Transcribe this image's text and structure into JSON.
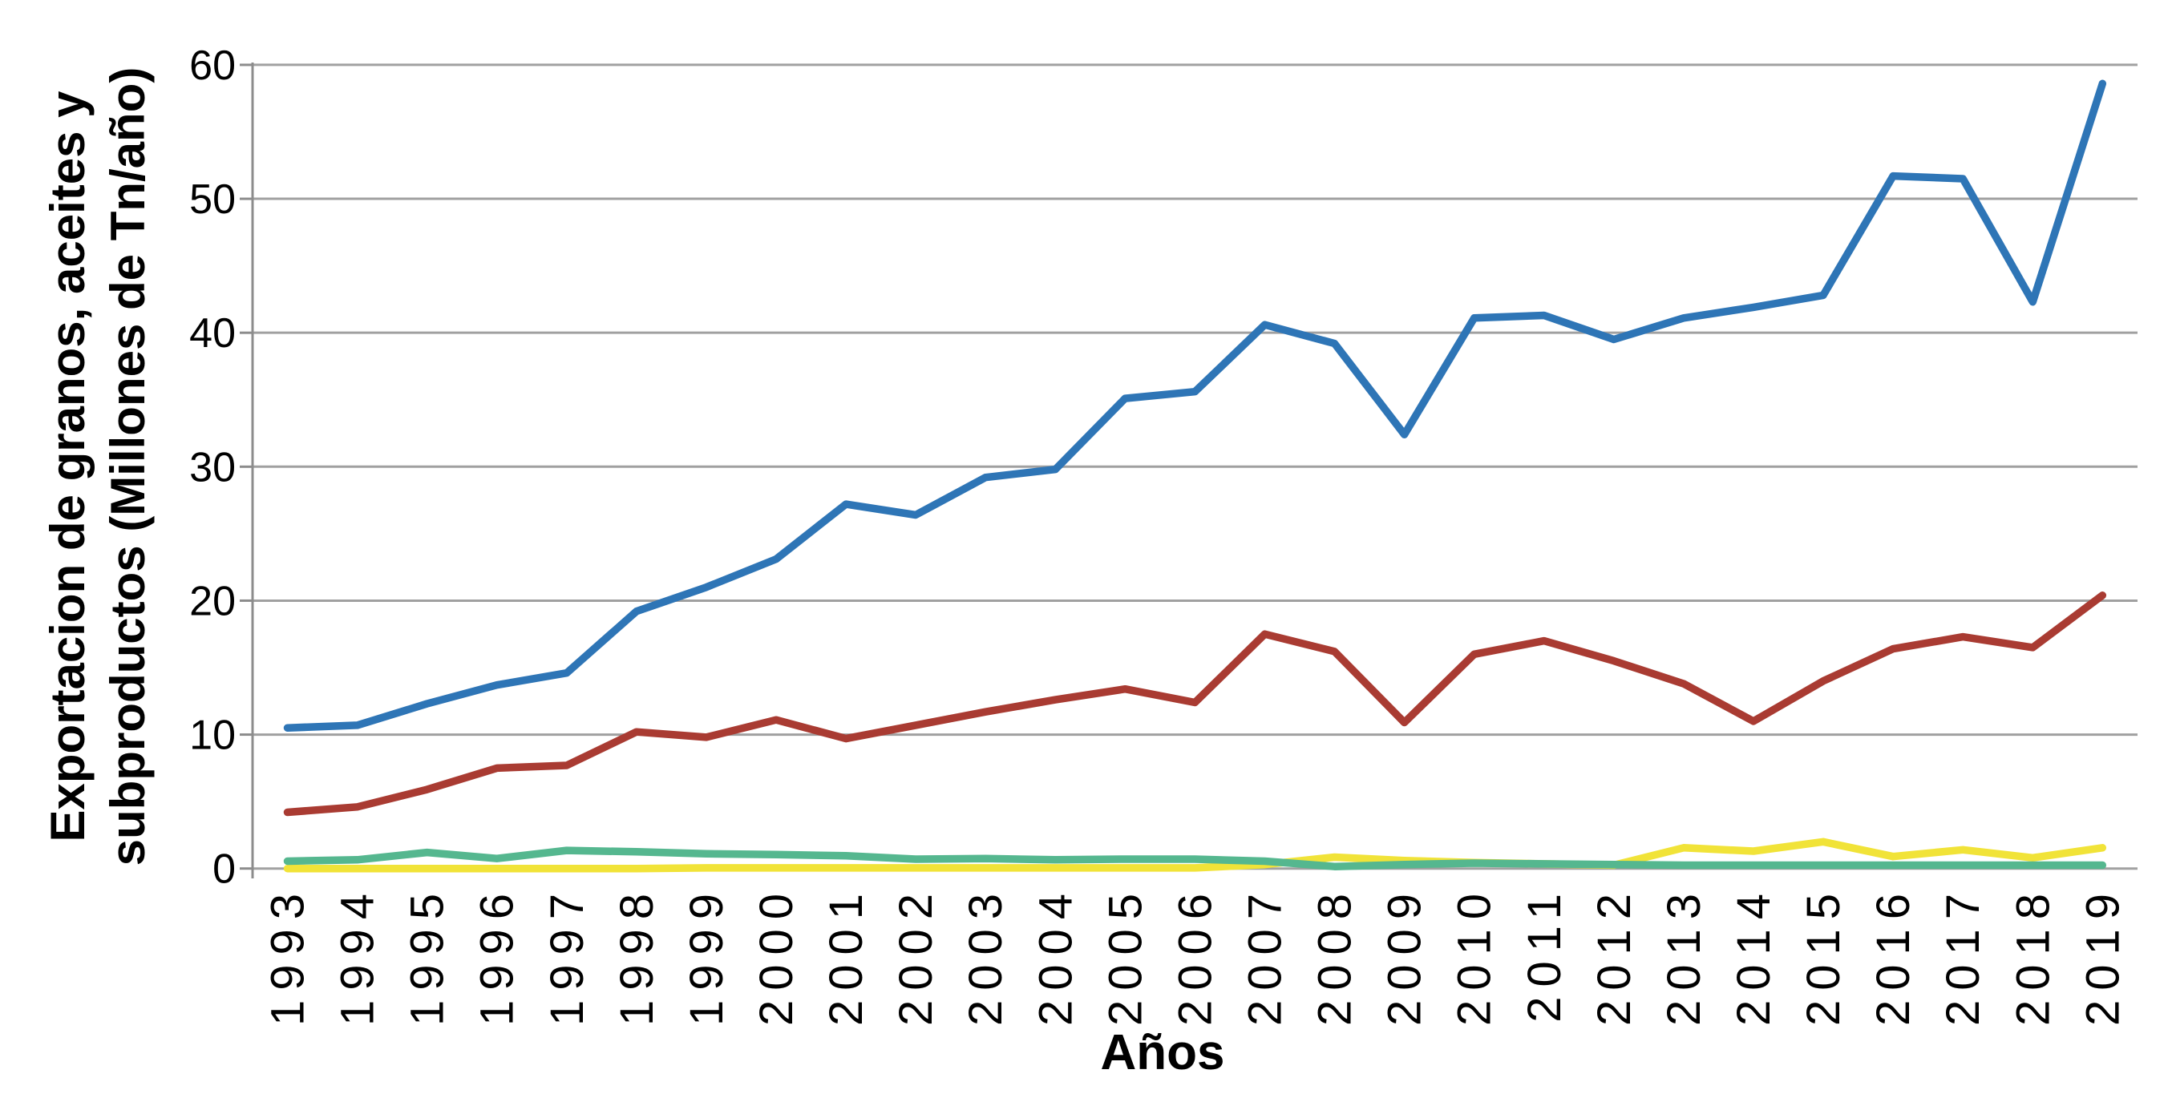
{
  "figure": {
    "background": "#FFFFFF",
    "text_color": "#000000",
    "grid_color": "#A0A0A0",
    "axis_color": "#8C8C8C"
  },
  "chart_data": {
    "type": "line",
    "title": "",
    "xlabel": "Años",
    "ylabel_line1": "Exportacion de granos, aceites y",
    "ylabel_line2": "subproductos (Millones de Tn/año)",
    "x": [
      1993,
      1994,
      1995,
      1996,
      1997,
      1998,
      1999,
      2000,
      2001,
      2002,
      2003,
      2004,
      2005,
      2006,
      2007,
      2008,
      2009,
      2010,
      2011,
      2012,
      2013,
      2014,
      2015,
      2016,
      2017,
      2018,
      2019
    ],
    "ylim": [
      0,
      60
    ],
    "yticks": [
      0,
      10,
      20,
      30,
      40,
      50,
      60
    ],
    "grid": "horizontal",
    "legend_position": "none",
    "series": [
      {
        "name": "blue",
        "color": "#2E75B6",
        "values": [
          10.5,
          10.7,
          12.3,
          13.7,
          14.6,
          19.2,
          21.0,
          23.1,
          27.2,
          26.4,
          29.2,
          29.8,
          35.1,
          35.6,
          40.6,
          39.2,
          32.4,
          41.1,
          41.3,
          39.5,
          41.1,
          41.9,
          42.8,
          51.7,
          51.5,
          42.3,
          58.6
        ]
      },
      {
        "name": "red",
        "color": "#A93B32",
        "values": [
          4.2,
          4.6,
          5.9,
          7.5,
          7.7,
          10.2,
          9.8,
          11.1,
          9.7,
          10.7,
          11.7,
          12.6,
          13.4,
          12.4,
          17.5,
          16.2,
          10.9,
          16.0,
          17.0,
          15.5,
          13.8,
          11.0,
          14.0,
          16.4,
          17.3,
          16.5,
          20.4
        ]
      },
      {
        "name": "green",
        "color": "#55B78F",
        "values": [
          0.55,
          0.65,
          1.2,
          0.75,
          1.35,
          1.25,
          1.1,
          1.05,
          0.95,
          0.7,
          0.75,
          0.65,
          0.7,
          0.7,
          0.55,
          0.15,
          0.3,
          0.4,
          0.35,
          0.3,
          0.25,
          0.25,
          0.25,
          0.25,
          0.25,
          0.25,
          0.25
        ]
      },
      {
        "name": "yellow",
        "color": "#F1E338",
        "values": [
          0.0,
          0.0,
          0.0,
          0.0,
          0.0,
          0.0,
          0.05,
          0.05,
          0.05,
          0.05,
          0.05,
          0.05,
          0.05,
          0.05,
          0.3,
          0.85,
          0.6,
          0.45,
          0.35,
          0.25,
          1.55,
          1.3,
          2.0,
          0.9,
          1.4,
          0.8,
          1.55
        ]
      }
    ]
  }
}
